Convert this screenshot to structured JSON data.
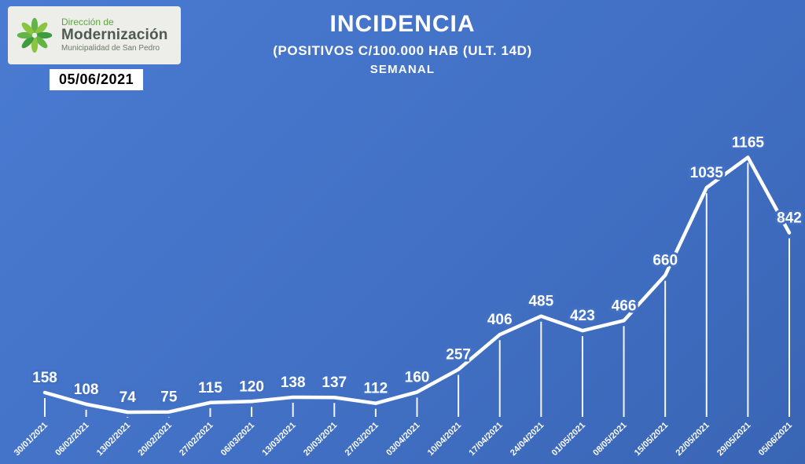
{
  "logo": {
    "line1": "Dirección de",
    "line2": "Modernización",
    "line3": "Municipalidad de San Pedro"
  },
  "date_badge": "05/06/2021",
  "header": {
    "title": "INCIDENCIA",
    "subtitle": "(POSITIVOS C/100.000 HAB (ULT. 14D)",
    "period": "SEMANAL"
  },
  "chart_data": {
    "type": "line",
    "title": "INCIDENCIA (POSITIVOS C/100.000 HAB (ULT. 14D) SEMANAL",
    "categories": [
      "30/01/2021",
      "06/02/2021",
      "13/02/2021",
      "20/02/2021",
      "27/02/2021",
      "06/03/2021",
      "13/03/2021",
      "20/03/2021",
      "27/03/2021",
      "03/04/2021",
      "10/04/2021",
      "17/04/2021",
      "24/04/2021",
      "01/05/2021",
      "08/05/2021",
      "15/05/2021",
      "22/05/2021",
      "29/05/2021",
      "05/06/2021"
    ],
    "values": [
      158,
      108,
      74,
      75,
      115,
      120,
      138,
      137,
      112,
      160,
      257,
      406,
      485,
      423,
      466,
      660,
      1035,
      1165,
      842
    ],
    "ylim": [
      0,
      1200
    ],
    "xlabel": "",
    "ylabel": "",
    "grid": false,
    "legend_position": "none",
    "line_color": "#ffffff",
    "label_color": "#ffffff",
    "background_color": "#4170c4"
  }
}
